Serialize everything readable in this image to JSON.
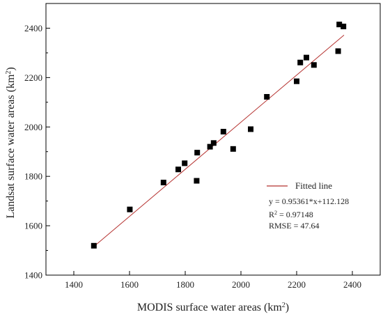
{
  "chart_data": {
    "type": "scatter",
    "title": "",
    "xlabel": "MODIS surface water areas (km",
    "xlabel_sup": "2",
    "xlabel_suffix": ")",
    "ylabel": "Landsat surface water areas (km",
    "ylabel_sup": "2",
    "ylabel_suffix": ")",
    "xlim": [
      1300,
      2500
    ],
    "ylim": [
      1400,
      2500
    ],
    "xticks": [
      1400,
      1600,
      1800,
      2000,
      2200,
      2400
    ],
    "yticks": [
      1400,
      1600,
      1800,
      2000,
      2200,
      2400
    ],
    "grid": false,
    "legend_position": "lower-right",
    "series": [
      {
        "name": "",
        "kind": "scatter",
        "marker": "square",
        "color": "#000000",
        "x": [
          1472,
          1601,
          1722,
          1775,
          1798,
          1841,
          1843,
          1889,
          1902,
          1937,
          1972,
          2035,
          2093,
          2200,
          2213,
          2235,
          2262,
          2349,
          2353,
          2368
        ],
        "y": [
          1519,
          1666,
          1775,
          1828,
          1853,
          1782,
          1896,
          1920,
          1935,
          1981,
          1911,
          1991,
          2122,
          2185,
          2261,
          2281,
          2251,
          2307,
          2415,
          2407
        ]
      },
      {
        "name": "Fitted line",
        "kind": "line",
        "color": "#b5312f",
        "x": [
          1470,
          2370
        ],
        "y": [
          1513.9,
          2372.1
        ]
      }
    ],
    "annotations": {
      "equation": "y = 0.95361*x+112.128",
      "r2_prefix": "R",
      "r2_sup": "2",
      "r2_suffix": " = 0.97148",
      "rmse": "RMSE = 47.64"
    }
  }
}
